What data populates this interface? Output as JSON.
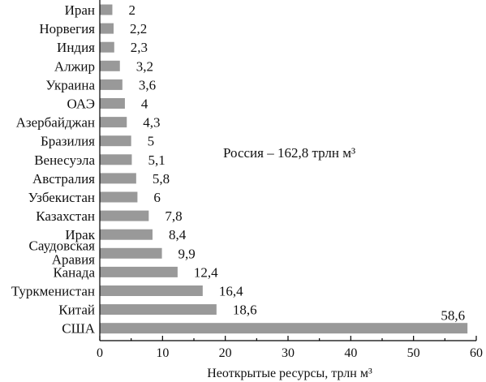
{
  "chart_data": {
    "type": "bar",
    "orientation": "horizontal",
    "categories": [
      "Иран",
      "Норвегия",
      "Индия",
      "Алжир",
      "Украина",
      "ОАЭ",
      "Азербайджан",
      "Бразилия",
      "Венесуэла",
      "Австралия",
      "Узбекистан",
      "Казахстан",
      "Ирак",
      "Саудовская Аравия",
      "Канада",
      "Туркменистан",
      "Китай",
      "США"
    ],
    "values": [
      2,
      2.2,
      2.3,
      3.2,
      3.6,
      4,
      4.3,
      5,
      5.1,
      5.8,
      6,
      7.8,
      8.4,
      9.9,
      12.4,
      16.4,
      18.6,
      58.6
    ],
    "value_labels": [
      "2",
      "2,2",
      "2,3",
      "3,2",
      "3,6",
      "4",
      "4,3",
      "5",
      "5,1",
      "5,8",
      "6",
      "7,8",
      "8,4",
      "9,9",
      "12,4",
      "16,4",
      "18,6",
      "58,6"
    ],
    "title": "",
    "xlabel": "Неоткрытые ресурсы, трлн м³",
    "ylabel": "",
    "xlim": [
      0,
      60
    ],
    "xticks": [
      0,
      10,
      20,
      30,
      40,
      50,
      60
    ],
    "grid": false,
    "bar_color": "#999999",
    "annotation": "Россия – 162,8 трлн м³"
  }
}
